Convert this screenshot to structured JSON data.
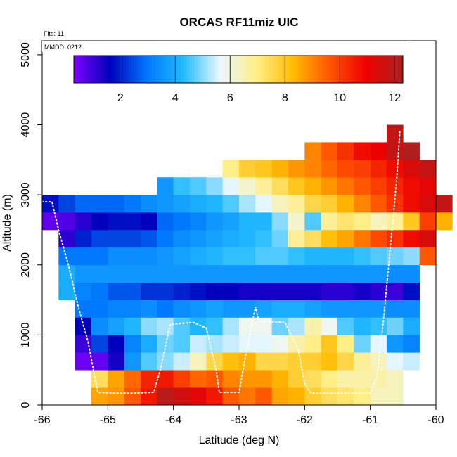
{
  "chart_data": {
    "type": "heatmap",
    "title": "ORCAS RF11miz UIC",
    "annotations": [
      "Flts: 11",
      "MMDD: 0212"
    ],
    "xlabel": "Latitude (deg N)",
    "ylabel": "Altitude (m)",
    "xlim": [
      -66,
      -60
    ],
    "ylim": [
      0,
      5200
    ],
    "xticks": [
      -66,
      -65,
      -64,
      -63,
      -62,
      -61,
      -60
    ],
    "yticks": [
      0,
      1000,
      2000,
      3000,
      4000,
      5000
    ],
    "colorbar": {
      "range": [
        0.3,
        12.3
      ],
      "ticks": [
        2,
        4,
        6,
        8,
        10,
        12
      ],
      "stops": [
        "#7f00ff",
        "#0000bb",
        "#0077ff",
        "#22bbff",
        "#eaf8ff",
        "#ffee88",
        "#ffbb00",
        "#ff5500",
        "#ee0000",
        "#aa2222"
      ]
    },
    "grid": false,
    "cell_size": {
      "lat": 0.25,
      "alt": 250
    },
    "heatmap": [
      {
        "alt": 125,
        "lat_start": -65.25,
        "values": [
          8.6,
          8.8,
          9.6,
          10.6,
          12.0,
          11.6,
          11.2,
          10.6,
          9.6,
          9.2,
          9.6,
          8.6,
          8.4,
          7.8,
          7.4,
          7.2,
          7.0,
          6.4,
          6.4
        ]
      },
      {
        "alt": 375,
        "lat_start": -65.25,
        "values": [
          7.4,
          8.6,
          9.4,
          10.4,
          10.6,
          10.0,
          9.4,
          9.6,
          9.0,
          8.8,
          8.8,
          8.4,
          7.8,
          7.4,
          7.0,
          6.6,
          6.6,
          6.6,
          6.4
        ]
      },
      {
        "alt": 625,
        "lat_start": -65.5,
        "values": [
          0.5,
          0.6,
          1.4,
          3.6,
          4.6,
          5.0,
          5.4,
          6.4,
          7.6,
          8.2,
          8.4,
          7.6,
          7.6,
          7.8,
          7.8,
          8.2,
          7.6,
          6.8,
          6.4,
          5.6,
          5.4
        ]
      },
      {
        "alt": 875,
        "lat_start": -65.5,
        "values": [
          1.0,
          2.4,
          1.6,
          3.2,
          4.0,
          4.8,
          4.6,
          5.4,
          5.2,
          5.4,
          5.6,
          5.6,
          5.8,
          6.6,
          7.0,
          8.0,
          7.0,
          4.8,
          5.6,
          3.6,
          3.2
        ]
      },
      {
        "alt": 1125,
        "lat_start": -65.5,
        "values": [
          1.6,
          3.4,
          3.8,
          4.2,
          5.0,
          5.2,
          4.6,
          4.2,
          4.4,
          5.2,
          5.8,
          5.8,
          4.8,
          5.2,
          6.6,
          5.8,
          4.6,
          4.2,
          4.4,
          4.8,
          4.0
        ]
      },
      {
        "alt": 1375,
        "lat_start": -65.5,
        "values": [
          3.0,
          3.0,
          3.2,
          3.2,
          3.4,
          3.0,
          3.4,
          3.6,
          3.8,
          3.6,
          3.6,
          3.8,
          4.0,
          4.0,
          3.8,
          3.6,
          3.6,
          3.6,
          3.6,
          3.4,
          3.4
        ]
      },
      {
        "alt": 1625,
        "lat_start": -65.75,
        "values": [
          4.0,
          3.2,
          3.0,
          2.6,
          2.6,
          2.2,
          2.2,
          2.0,
          1.8,
          1.6,
          1.6,
          1.4,
          1.4,
          1.4,
          1.4,
          1.4,
          1.2,
          1.2,
          1.4,
          1.2,
          1.0,
          1.8
        ]
      },
      {
        "alt": 1875,
        "lat_start": -65.75,
        "values": [
          4.0,
          3.6,
          3.6,
          3.6,
          3.6,
          3.6,
          3.6,
          3.6,
          3.6,
          3.6,
          3.6,
          3.6,
          3.6,
          3.6,
          3.6,
          3.6,
          3.6,
          3.6,
          3.6,
          3.6,
          3.4,
          3.4
        ]
      },
      {
        "alt": 2125,
        "lat_start": -65.75,
        "values": [
          3.0,
          3.0,
          3.0,
          3.4,
          3.4,
          3.4,
          3.6,
          3.8,
          4.0,
          4.2,
          4.4,
          4.4,
          4.6,
          4.6,
          4.4,
          4.2,
          4.2,
          4.2,
          4.4,
          4.6,
          4.8,
          5.0,
          9.6
        ]
      },
      {
        "alt": 2375,
        "lat_start": -65.75,
        "values": [
          1.2,
          2.0,
          2.4,
          2.4,
          2.4,
          2.6,
          3.0,
          3.4,
          3.6,
          3.8,
          4.0,
          4.2,
          4.4,
          4.8,
          6.8,
          7.4,
          8.2,
          8.6,
          9.2,
          9.8,
          10.2,
          10.8,
          11.4
        ]
      },
      {
        "alt": 2625,
        "lat_start": -66.0,
        "values": [
          0.6,
          0.8,
          1.2,
          1.6,
          1.8,
          1.8,
          1.6,
          2.8,
          3.0,
          3.2,
          3.6,
          3.8,
          4.2,
          4.2,
          5.0,
          6.2,
          4.6,
          6.8,
          7.2,
          7.0,
          6.4,
          6.8,
          8.0,
          10.0,
          8.4
        ]
      },
      {
        "alt": 2875,
        "lat_start": -66.0,
        "values": [
          1.8,
          2.4,
          2.8,
          2.8,
          2.8,
          3.0,
          3.4,
          3.6,
          3.8,
          4.0,
          4.2,
          4.6,
          5.2,
          5.6,
          6.4,
          6.8,
          7.6,
          7.8,
          8.4,
          9.0,
          9.6,
          10.2,
          10.8,
          11.4,
          11.8
        ]
      },
      {
        "alt": 3125,
        "lat_start": -64.25,
        "values": [
          3.6,
          4.4,
          4.6,
          5.0,
          5.6,
          6.2,
          6.8,
          7.4,
          8.0,
          8.4,
          8.8,
          9.2,
          9.6,
          10.0,
          10.4,
          10.8,
          11.2
        ]
      },
      {
        "alt": 3375,
        "lat_start": -63.25,
        "values": [
          7.0,
          7.8,
          8.0,
          8.4,
          8.8,
          9.0,
          9.4,
          9.8,
          10.0,
          10.4,
          10.8,
          11.4,
          11.8
        ]
      },
      {
        "alt": 3625,
        "lat_start": -62.0,
        "values": [
          9.0,
          9.6,
          10.2,
          10.8,
          11.0,
          11.8,
          12.2
        ]
      },
      {
        "alt": 3875,
        "lat_start": -60.75,
        "values": [
          11.8
        ]
      }
    ],
    "flight_track": [
      [
        -66.0,
        2900
      ],
      [
        -65.85,
        2900
      ],
      [
        -65.75,
        2500
      ],
      [
        -65.6,
        2000
      ],
      [
        -65.45,
        1400
      ],
      [
        -65.3,
        900
      ],
      [
        -65.2,
        400
      ],
      [
        -65.15,
        180
      ],
      [
        -64.9,
        170
      ],
      [
        -64.6,
        170
      ],
      [
        -64.3,
        180
      ],
      [
        -64.2,
        500
      ],
      [
        -64.05,
        1150
      ],
      [
        -63.7,
        1180
      ],
      [
        -63.5,
        1100
      ],
      [
        -63.35,
        500
      ],
      [
        -63.3,
        180
      ],
      [
        -63.0,
        180
      ],
      [
        -62.9,
        700
      ],
      [
        -62.75,
        1400
      ],
      [
        -62.7,
        1200
      ],
      [
        -62.3,
        1180
      ],
      [
        -62.1,
        800
      ],
      [
        -62.0,
        300
      ],
      [
        -61.9,
        170
      ],
      [
        -61.0,
        170
      ],
      [
        -60.9,
        400
      ],
      [
        -60.8,
        1200
      ],
      [
        -60.7,
        2200
      ],
      [
        -60.6,
        3200
      ],
      [
        -60.55,
        3900
      ]
    ]
  }
}
